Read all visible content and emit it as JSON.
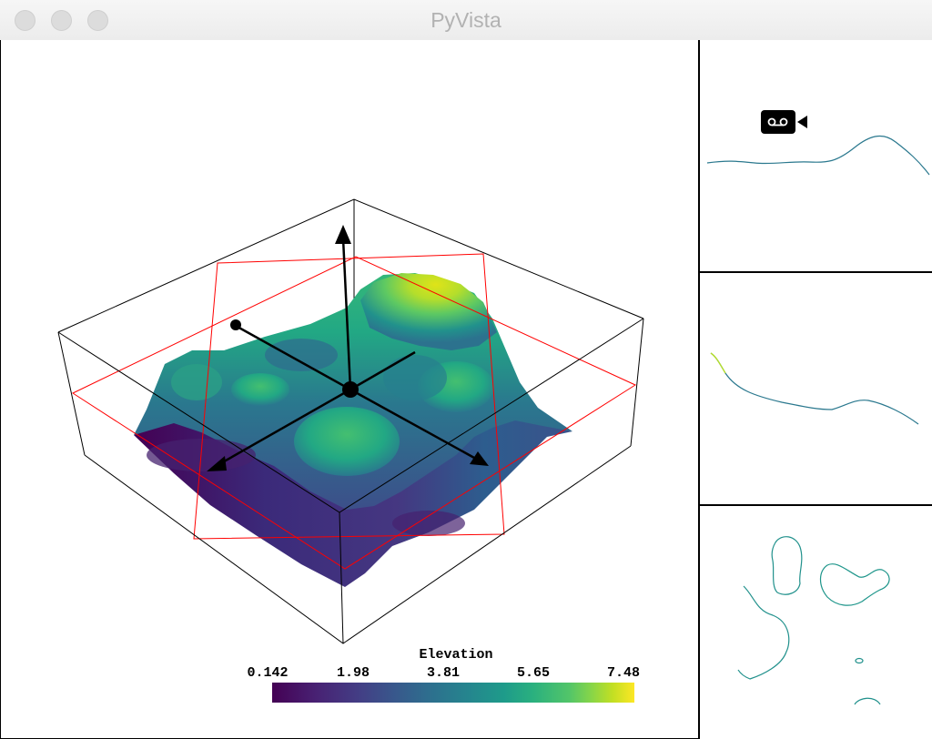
{
  "window": {
    "title": "PyVista"
  },
  "scalar_bar": {
    "title": "Elevation",
    "ticks": [
      "0.142",
      "1.98",
      "3.81",
      "5.65",
      "7.48"
    ]
  },
  "colors": {
    "bounds_box": "#000000",
    "slice_planes": "#ff0000",
    "colormap_low": "#440154",
    "colormap_high": "#fde725"
  },
  "icons": {
    "camera": "camera-icon"
  }
}
